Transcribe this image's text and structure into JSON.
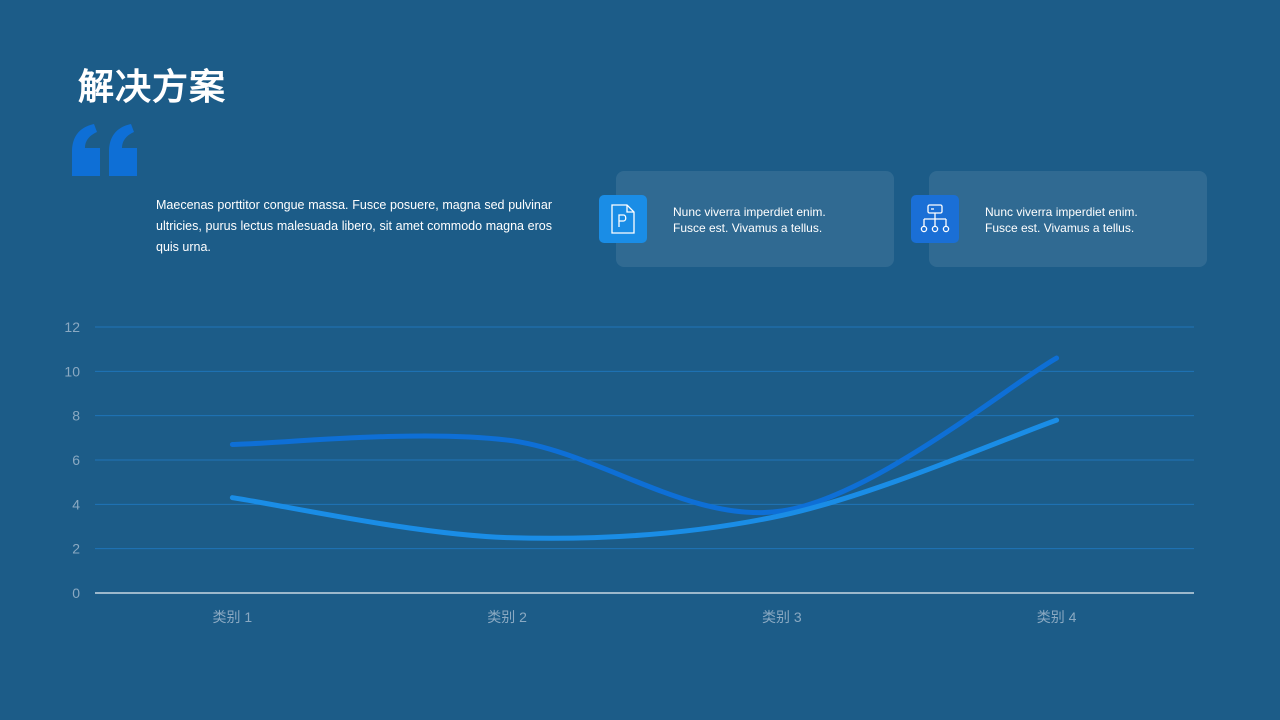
{
  "slide": {
    "title": "解决方案",
    "quote_icon": "quote-mark-icon",
    "intro_text": "Maecenas porttitor congue massa. Fusce posuere, magna sed pulvinar ultricies, purus lectus malesuada libero, sit amet commodo magna eros quis urna."
  },
  "cards": [
    {
      "icon": "document-p-icon",
      "icon_color": "#1a8de6",
      "line1": "Nunc viverra imperdiet enim.",
      "line2": "Fusce est. Vivamus a tellus."
    },
    {
      "icon": "hierarchy-icon",
      "icon_color": "#1a6fd6",
      "line1": "Nunc viverra imperdiet enim.",
      "line2": "Fusce est. Vivamus a tellus."
    }
  ],
  "colors": {
    "background": "#1c5c88",
    "accent_dark": "#0e6fd6",
    "accent_light": "#1a8de6",
    "gridline": "#1f74b8",
    "axis_tick_text": "#8aa9c2"
  },
  "chart_data": {
    "type": "line",
    "smooth": true,
    "categories": [
      "类别 1",
      "类别 2",
      "类别 3",
      "类别 4"
    ],
    "series": [
      {
        "values": [
          6.7,
          6.9,
          3.7,
          10.6
        ],
        "color": "#0e6fd6"
      },
      {
        "values": [
          4.3,
          2.5,
          3.5,
          7.8
        ],
        "color": "#1a8de6"
      }
    ],
    "ylim": [
      0,
      12
    ],
    "yticks": [
      0,
      2,
      4,
      6,
      8,
      10,
      12
    ],
    "grid": true,
    "legend": "none"
  }
}
